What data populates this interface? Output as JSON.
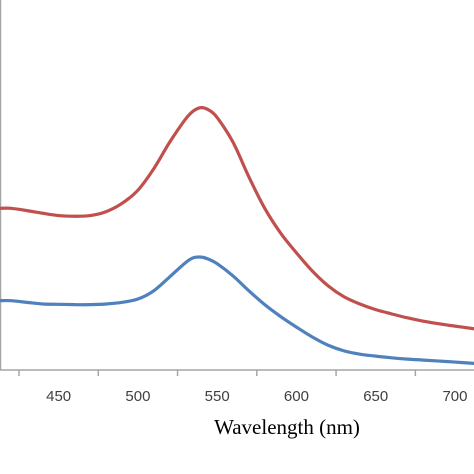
{
  "chart_data": {
    "type": "line",
    "title": "",
    "xlabel": "Wavelength (nm)",
    "ylabel": "",
    "xlim": [
      413,
      712
    ],
    "ylim": [
      0,
      1
    ],
    "x_ticks": [
      "450",
      "500",
      "550",
      "600",
      "650",
      "700"
    ],
    "grid": false,
    "legend": "none",
    "series": [
      {
        "color": "#c0504d",
        "x": [
          413,
          420,
          430,
          440,
          450,
          460,
          470,
          480,
          490,
          500,
          510,
          520,
          530,
          535,
          540,
          545,
          550,
          560,
          570,
          580,
          590,
          600,
          610,
          620,
          630,
          640,
          650,
          660,
          670,
          680,
          690,
          700,
          712
        ],
        "y": [
          0.49,
          0.49,
          0.483,
          0.475,
          0.468,
          0.466,
          0.468,
          0.48,
          0.505,
          0.545,
          0.61,
          0.69,
          0.76,
          0.785,
          0.795,
          0.787,
          0.765,
          0.69,
          0.585,
          0.49,
          0.415,
          0.355,
          0.3,
          0.255,
          0.222,
          0.2,
          0.183,
          0.17,
          0.158,
          0.148,
          0.14,
          0.133,
          0.125
        ]
      },
      {
        "color": "#4f81bd",
        "x": [
          413,
          420,
          430,
          440,
          450,
          460,
          470,
          480,
          490,
          500,
          510,
          520,
          530,
          535,
          540,
          545,
          550,
          560,
          570,
          580,
          590,
          600,
          610,
          620,
          630,
          640,
          650,
          660,
          670,
          680,
          690,
          700,
          712
        ],
        "y": [
          0.21,
          0.21,
          0.205,
          0.2,
          0.199,
          0.198,
          0.198,
          0.2,
          0.205,
          0.215,
          0.24,
          0.282,
          0.325,
          0.34,
          0.342,
          0.335,
          0.322,
          0.285,
          0.24,
          0.198,
          0.162,
          0.13,
          0.1,
          0.075,
          0.058,
          0.048,
          0.042,
          0.037,
          0.033,
          0.03,
          0.027,
          0.024,
          0.02
        ]
      }
    ]
  }
}
